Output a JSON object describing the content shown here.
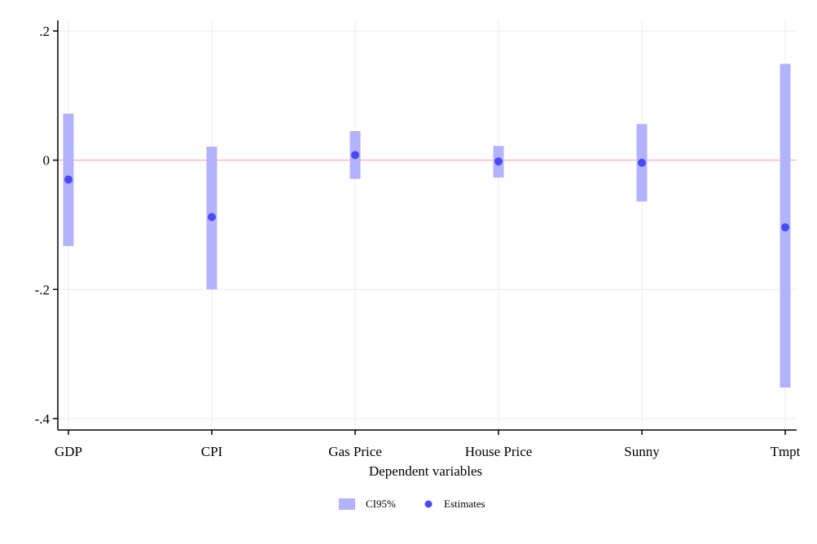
{
  "chart_data": {
    "type": "errorbar",
    "xlabel": "Dependent variables",
    "ylabel": "",
    "ylim": [
      -0.42,
      0.22
    ],
    "yticks": [
      0.2,
      0,
      -0.2,
      -0.4
    ],
    "ytick_labels": [
      ".2",
      "0",
      "-.2",
      "-.4"
    ],
    "reference_line": 0,
    "grid": true,
    "legend_position": "bottom",
    "categories": [
      "GDP",
      "CPI",
      "Gas Price",
      "House Price",
      "Sunny",
      "Tmpt"
    ],
    "series": [
      {
        "name": "CI95%",
        "kind": "interval",
        "lower": [
          -0.133,
          -0.2,
          -0.029,
          -0.027,
          -0.064,
          -0.352
        ],
        "upper": [
          0.072,
          0.021,
          0.045,
          0.022,
          0.056,
          0.149
        ]
      },
      {
        "name": "Estimates",
        "kind": "point",
        "values": [
          -0.03,
          -0.088,
          0.008,
          -0.002,
          -0.004,
          -0.104
        ]
      }
    ],
    "colors": {
      "interval": "#b3b3fd",
      "point": "#4a4af5",
      "reference_line": "#ffb6c1",
      "grid": "#ececec",
      "axis": "#000000"
    }
  }
}
